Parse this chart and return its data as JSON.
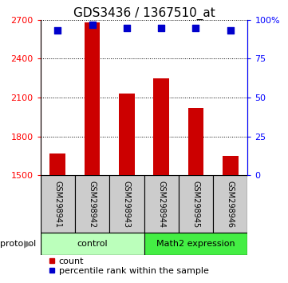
{
  "title": "GDS3436 / 1367510_at",
  "samples": [
    "GSM298941",
    "GSM298942",
    "GSM298943",
    "GSM298944",
    "GSM298945",
    "GSM298946"
  ],
  "counts": [
    1670,
    2680,
    2130,
    2250,
    2020,
    1650
  ],
  "percentiles": [
    93,
    97,
    95,
    95,
    95,
    93
  ],
  "ylim_left": [
    1500,
    2700
  ],
  "ylim_right": [
    0,
    100
  ],
  "yticks_left": [
    1500,
    1800,
    2100,
    2400,
    2700
  ],
  "yticks_right": [
    0,
    25,
    50,
    75,
    100
  ],
  "ytick_labels_right": [
    "0",
    "25",
    "50",
    "75",
    "100%"
  ],
  "bar_color": "#cc0000",
  "dot_color": "#0000cc",
  "bar_width": 0.45,
  "groups": [
    {
      "label": "control",
      "indices": [
        0,
        1,
        2
      ],
      "color": "#bbffbb"
    },
    {
      "label": "Math2 expression",
      "indices": [
        3,
        4,
        5
      ],
      "color": "#44ee44"
    }
  ],
  "protocol_label": "protocol",
  "legend_count_label": "count",
  "legend_percentile_label": "percentile rank within the sample",
  "plot_bg": "#ffffff",
  "sample_box_color": "#cccccc",
  "title_fontsize": 11,
  "tick_label_fontsize": 8,
  "sample_fontsize": 7,
  "group_fontsize": 8,
  "legend_fontsize": 8
}
